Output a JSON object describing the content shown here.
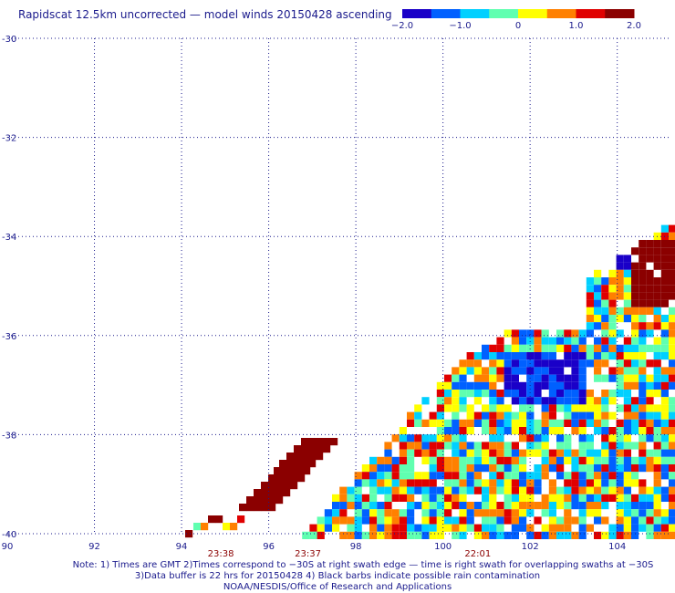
{
  "title": "Rapidscat 12.5km uncorrected — model winds 20150428 ascending",
  "colorbar": {
    "labels": [
      "−2.0",
      "−1.0",
      "0",
      "1.0",
      "2.0"
    ],
    "values": [
      -2.0,
      -1.0,
      0,
      1.0,
      2.0
    ],
    "colors": [
      "#1a00c8",
      "#0060ff",
      "#00d0ff",
      "#60ffb0",
      "#ffff00",
      "#ff8000",
      "#e00000",
      "#8b0000"
    ]
  },
  "notes": [
    "Note: 1) Times are GMT 2)Times correspond to −30S at right swath edge — time is right swath for overlapping swaths at −30S",
    "3)Data buffer is 22 hrs for 20150428 4) Black barbs indicate possible rain contamination",
    "NOAA/NESDIS/Office of Research and Applications"
  ],
  "chart_data": {
    "type": "heatmap",
    "title": "Rapidscat 12.5km uncorrected — model winds 20150428 ascending",
    "x_ticks": [
      "90",
      "92",
      "94",
      "96",
      "98",
      "100",
      "102",
      "104"
    ],
    "y_ticks": [
      "-30",
      "-32",
      "-34",
      "-36",
      "-38",
      "-40"
    ],
    "xlim": [
      90,
      105.2
    ],
    "ylim": [
      -40,
      -30
    ],
    "grid": true,
    "color_range": [
      -2.0,
      2.0
    ],
    "swath_times": [
      {
        "label": "23:38",
        "lon": 94.9
      },
      {
        "label": "23:37",
        "lon": 96.9
      },
      {
        "label": "22:01",
        "lon": 100.8
      }
    ],
    "regions": [
      {
        "name": "main swath",
        "lon_range": [
          95.8,
          105.2
        ],
        "lat_range": [
          -40,
          -32.3
        ],
        "value_range": [
          -2.0,
          1.5
        ]
      },
      {
        "name": "strong positive strip",
        "lon_range": [
          95.5,
          97.4
        ],
        "lat_range": [
          -39.7,
          -38.2
        ],
        "value": 2.0
      },
      {
        "name": "strong positive core",
        "lon_range": [
          103.9,
          105.2
        ],
        "lat_range": [
          -35.3,
          -32.8
        ],
        "value": 1.8
      }
    ]
  }
}
